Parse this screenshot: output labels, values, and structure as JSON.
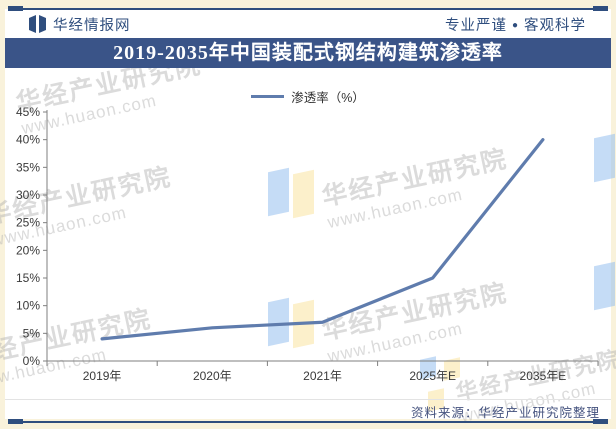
{
  "header": {
    "site_name": "华经情报网",
    "slogan_left": "专业严谨",
    "slogan_dot": "●",
    "slogan_right": "客观科学"
  },
  "banner": {
    "title": "2019-2035年中国装配式钢结构建筑渗透率"
  },
  "legend": {
    "label": "渗透率（%）"
  },
  "chart_data": {
    "type": "line",
    "title": "2019-2035年中国装配式钢结构建筑渗透率",
    "categories": [
      "2019年",
      "2020年",
      "2021年",
      "2025年E",
      "2035年E"
    ],
    "series": [
      {
        "name": "渗透率（%）",
        "values": [
          4,
          6,
          7,
          15,
          40
        ]
      }
    ],
    "xlabel": "",
    "ylabel": "",
    "ylim": [
      0,
      45
    ],
    "ytick_step": 5,
    "ytick_suffix": "%",
    "grid": false,
    "legend_position": "top-center",
    "line_color": "#5F7CAD",
    "axis_color": "#7F7F7F",
    "tick_label_color": "#3A3A3A"
  },
  "watermark": {
    "text": "华经产业研究院",
    "url": "www.huaon.com"
  },
  "footer": {
    "source": "资料来源：华经产业研究院整理"
  },
  "colors": {
    "navy": "#2F4E7E",
    "banner_bg": "#3A5488",
    "banner_text": "#FFFFFF",
    "frame_bg": "#F9F2DB",
    "panel_bg": "#FFFFFF",
    "line": "#5F7CAD"
  }
}
